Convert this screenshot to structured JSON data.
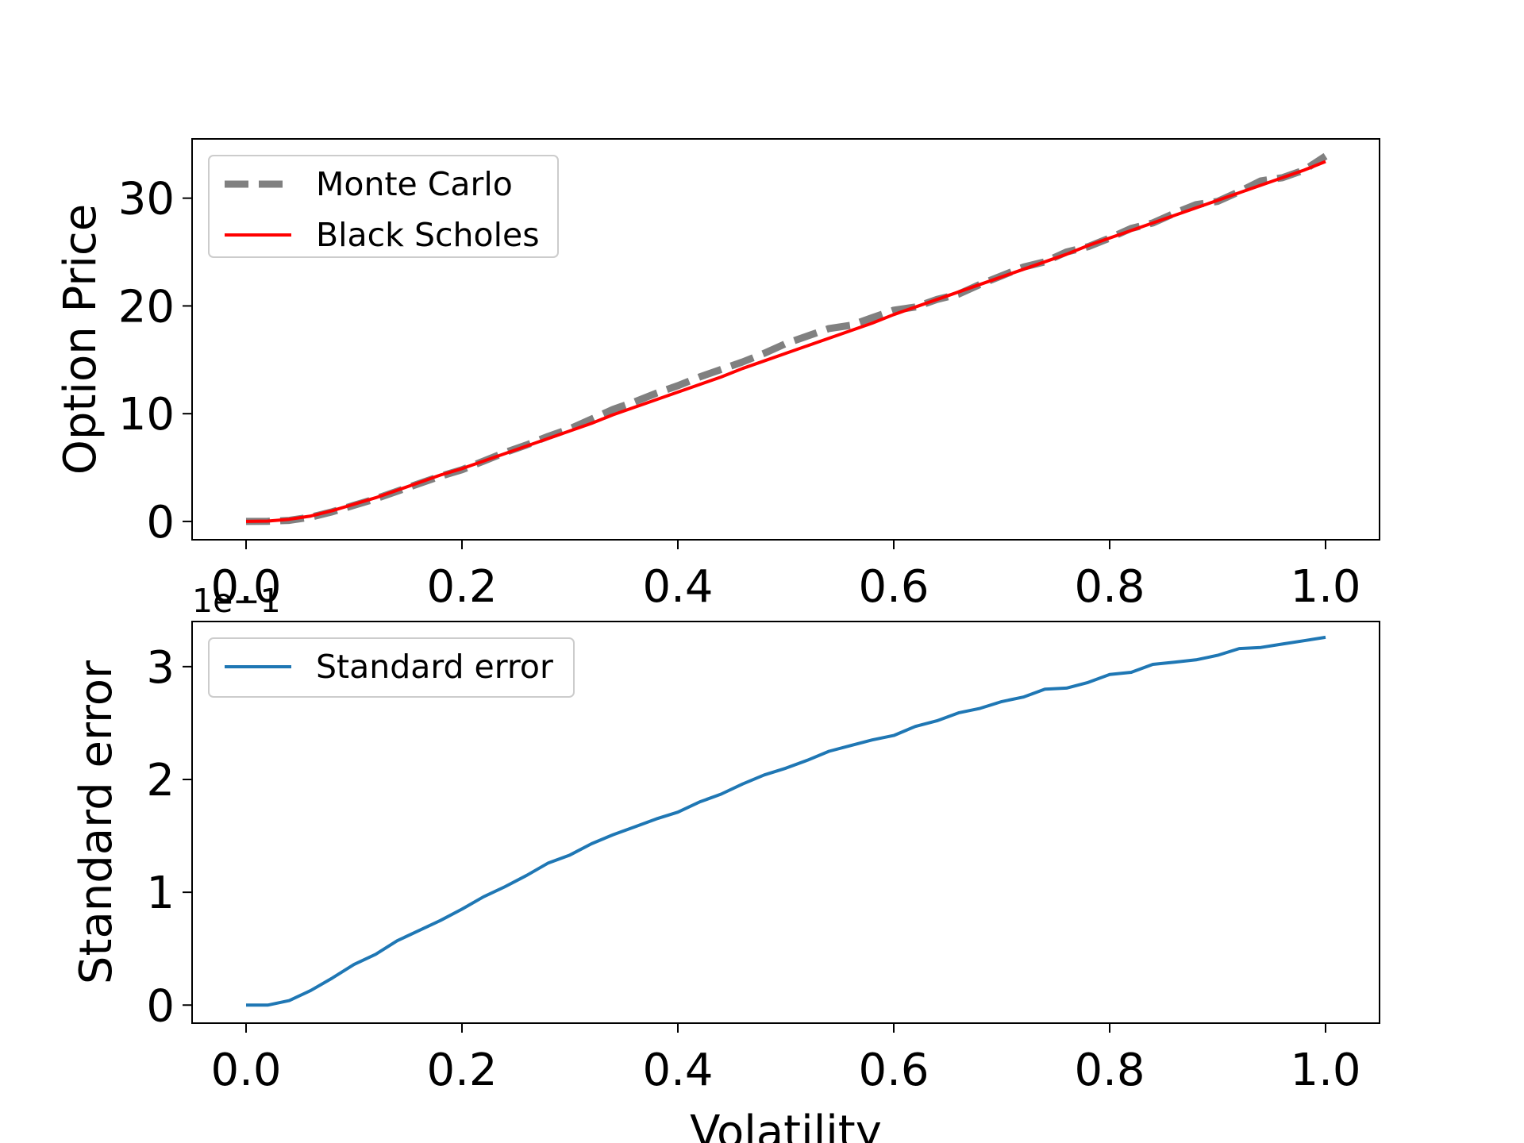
{
  "chart_data": [
    {
      "type": "line",
      "xlabel": "",
      "ylabel": "Option Price",
      "xlim": [
        -0.05,
        1.05
      ],
      "ylim": [
        -1.7,
        35.5
      ],
      "xticks": [
        0.0,
        0.2,
        0.4,
        0.6,
        0.8,
        1.0
      ],
      "xtick_labels": [
        "0.0",
        "0.2",
        "0.4",
        "0.6",
        "0.8",
        "1.0"
      ],
      "yticks": [
        0,
        10,
        20,
        30
      ],
      "ytick_labels": [
        "0",
        "10",
        "20",
        "30"
      ],
      "legend_position": "upper-left",
      "grid": false,
      "x": [
        0.0,
        0.02,
        0.04,
        0.06,
        0.08,
        0.1,
        0.12,
        0.14,
        0.16,
        0.18,
        0.2,
        0.22,
        0.24,
        0.26,
        0.28,
        0.3,
        0.32,
        0.34,
        0.36,
        0.38,
        0.4,
        0.42,
        0.44,
        0.46,
        0.48,
        0.5,
        0.52,
        0.54,
        0.56,
        0.58,
        0.6,
        0.62,
        0.64,
        0.66,
        0.68,
        0.7,
        0.72,
        0.74,
        0.76,
        0.78,
        0.8,
        0.82,
        0.84,
        0.86,
        0.88,
        0.9,
        0.92,
        0.94,
        0.96,
        0.98,
        1.0
      ],
      "series": [
        {
          "name": "Monte Carlo",
          "color": "#808080",
          "style": "dashed",
          "values": [
            0.0,
            0.02,
            0.1,
            0.4,
            0.9,
            1.5,
            2.1,
            2.8,
            3.5,
            4.2,
            4.8,
            5.6,
            6.4,
            7.1,
            7.9,
            8.6,
            9.5,
            10.4,
            11.1,
            11.9,
            12.6,
            13.4,
            14.1,
            14.8,
            15.6,
            16.5,
            17.2,
            17.9,
            18.2,
            18.9,
            19.6,
            19.9,
            20.6,
            21.1,
            22.0,
            22.8,
            23.6,
            24.1,
            25.0,
            25.5,
            26.3,
            27.2,
            27.7,
            28.6,
            29.4,
            29.7,
            30.6,
            31.6,
            31.9,
            32.6,
            33.9
          ]
        },
        {
          "name": "Black Scholes",
          "color": "#ff0000",
          "style": "solid",
          "values": [
            0.0,
            0.03,
            0.2,
            0.5,
            1.0,
            1.6,
            2.2,
            2.9,
            3.6,
            4.3,
            4.9,
            5.6,
            6.3,
            7.0,
            7.7,
            8.4,
            9.1,
            9.9,
            10.6,
            11.3,
            12.0,
            12.7,
            13.4,
            14.2,
            14.9,
            15.6,
            16.3,
            17.0,
            17.7,
            18.4,
            19.2,
            19.9,
            20.6,
            21.3,
            22.0,
            22.7,
            23.4,
            24.1,
            24.8,
            25.6,
            26.3,
            27.0,
            27.7,
            28.4,
            29.1,
            29.8,
            30.5,
            31.2,
            31.9,
            32.6,
            33.4
          ]
        }
      ]
    },
    {
      "type": "line",
      "xlabel": "Volatility",
      "ylabel": "Standard error",
      "offset_text": "1e−1",
      "xlim": [
        -0.05,
        1.05
      ],
      "ylim": [
        -0.16,
        3.4
      ],
      "xticks": [
        0.0,
        0.2,
        0.4,
        0.6,
        0.8,
        1.0
      ],
      "xtick_labels": [
        "0.0",
        "0.2",
        "0.4",
        "0.6",
        "0.8",
        "1.0"
      ],
      "yticks": [
        0,
        1,
        2,
        3
      ],
      "ytick_labels": [
        "0",
        "1",
        "2",
        "3"
      ],
      "legend_position": "upper-left",
      "grid": false,
      "x": [
        0.0,
        0.02,
        0.04,
        0.06,
        0.08,
        0.1,
        0.12,
        0.14,
        0.16,
        0.18,
        0.2,
        0.22,
        0.24,
        0.26,
        0.28,
        0.3,
        0.32,
        0.34,
        0.36,
        0.38,
        0.4,
        0.42,
        0.44,
        0.46,
        0.48,
        0.5,
        0.52,
        0.54,
        0.56,
        0.58,
        0.6,
        0.62,
        0.64,
        0.66,
        0.68,
        0.7,
        0.72,
        0.74,
        0.76,
        0.78,
        0.8,
        0.82,
        0.84,
        0.86,
        0.88,
        0.9,
        0.92,
        0.94,
        0.96,
        0.98,
        1.0
      ],
      "series": [
        {
          "name": "Standard error",
          "color": "#1f77b4",
          "style": "solid",
          "values": [
            0.0,
            0.0,
            0.04,
            0.13,
            0.24,
            0.36,
            0.45,
            0.57,
            0.66,
            0.75,
            0.85,
            0.96,
            1.05,
            1.15,
            1.26,
            1.33,
            1.43,
            1.51,
            1.58,
            1.65,
            1.71,
            1.8,
            1.87,
            1.96,
            2.04,
            2.1,
            2.17,
            2.25,
            2.3,
            2.35,
            2.39,
            2.47,
            2.52,
            2.59,
            2.63,
            2.69,
            2.73,
            2.8,
            2.81,
            2.86,
            2.93,
            2.95,
            3.02,
            3.04,
            3.06,
            3.1,
            3.16,
            3.17,
            3.2,
            3.23,
            3.26
          ]
        }
      ]
    }
  ]
}
